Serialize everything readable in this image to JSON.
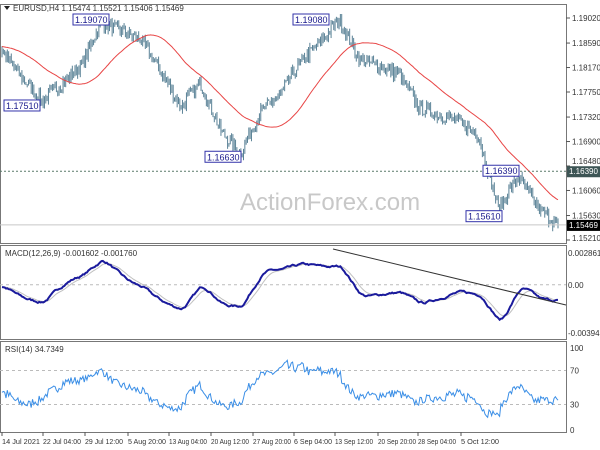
{
  "chart_data": [
    {
      "type": "candlestick",
      "title": "EURUSD,H4",
      "ohlc_header": "1.15474 1.15521 1.15406 1.15469",
      "symbol": "EURUSD",
      "timeframe": "H4",
      "price_path": [
        1.1845,
        1.18,
        1.176,
        1.179,
        1.182,
        1.1895,
        1.188,
        1.1865,
        1.181,
        1.175,
        1.179,
        1.171,
        1.1668,
        1.174,
        1.177,
        1.1825,
        1.186,
        1.19,
        1.183,
        1.182,
        1.1805,
        1.175,
        1.1735,
        1.1725,
        1.17,
        1.1575,
        1.163,
        1.1575,
        1.1547
      ],
      "moving_average_color": "#e84545",
      "candle_color": "#5a8296",
      "y_ticks": [
        "1.19020",
        "1.18590",
        "1.18170",
        "1.17750",
        "1.17320",
        "1.16900",
        "1.16480",
        "1.16060",
        "1.15630",
        "1.15210"
      ],
      "ylim": [
        1.1521,
        1.1902
      ],
      "annotations": [
        "1.19070",
        "1.19080",
        "1.17510",
        "1.16630",
        "1.16390",
        "1.15610"
      ],
      "horizontal_level": "1.16390",
      "current_price": "1.15469",
      "x_ticks": [
        "14 Jul 2021",
        "22 Jul 04:00",
        "29 Jul 12:00",
        "5 Aug 20:00",
        "13 Aug 04:00",
        "20 Aug 12:00",
        "27 Aug 20:00",
        "6 Sep 04:00",
        "13 Sep 12:00",
        "20 Sep 20:00",
        "28 Sep 04:00",
        "5 Oct 12:00"
      ]
    },
    {
      "type": "line",
      "title": "MACD(12,26,9) -0.001602 -0.001760",
      "y_ticks": [
        "0.002861",
        "0.00",
        "-0.00394"
      ],
      "ylim": [
        -0.00394,
        0.002861
      ],
      "macd_color": "#1a1a9c",
      "signal_color": "#c0c0c0",
      "trendline": true
    },
    {
      "type": "line",
      "title": "RSI(14) 34.7349",
      "y_ticks": [
        "100",
        "70",
        "30",
        "0"
      ],
      "ylim": [
        0,
        100
      ],
      "levels": [
        70,
        30
      ],
      "color": "#3a8ee6"
    }
  ],
  "watermark": "ActionForex.com"
}
